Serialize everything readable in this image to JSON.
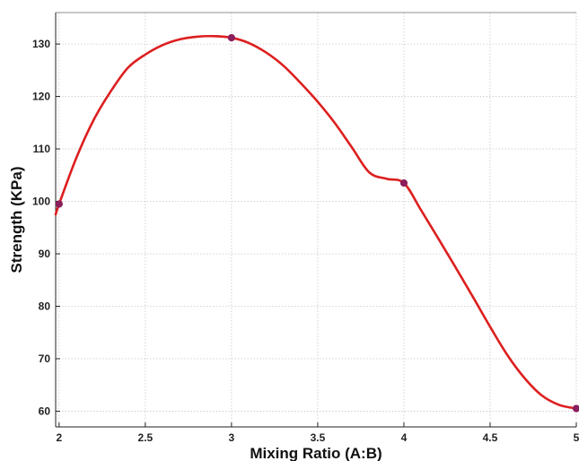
{
  "chart_data": {
    "type": "line",
    "title": "",
    "xlabel": "Mixing Ratio (A:B)",
    "ylabel": "Strength (KPa)",
    "xlim": [
      1.98,
      5.0
    ],
    "ylim": [
      57,
      136
    ],
    "x_ticks": [
      2,
      2.5,
      3,
      3.5,
      4,
      4.5,
      5
    ],
    "x_tick_labels": [
      "2",
      "2.5",
      "3",
      "3.5",
      "4",
      "4.5",
      "5"
    ],
    "y_ticks": [
      60,
      70,
      80,
      90,
      100,
      110,
      120,
      130
    ],
    "y_tick_labels": [
      "60",
      "70",
      "80",
      "90",
      "100",
      "110",
      "120",
      "130"
    ],
    "grid": true,
    "series": [
      {
        "line_color": "#dd1f1f",
        "marker_color": "#8a1f5c",
        "markers": {
          "x": [
            2,
            3,
            4,
            5
          ],
          "y": [
            99.5,
            131.2,
            103.5,
            60.5
          ]
        },
        "curve": {
          "x": [
            1.98,
            2.0,
            2.1,
            2.2,
            2.3,
            2.4,
            2.5,
            2.6,
            2.7,
            2.8,
            2.9,
            3.0,
            3.1,
            3.2,
            3.3,
            3.4,
            3.5,
            3.6,
            3.7,
            3.8,
            3.9,
            4.0,
            4.1,
            4.2,
            4.3,
            4.4,
            4.5,
            4.6,
            4.7,
            4.8,
            4.9,
            5.0
          ],
          "y": [
            97.5,
            99.5,
            108.3,
            115.5,
            121.0,
            125.5,
            128.0,
            129.8,
            130.9,
            131.4,
            131.5,
            131.2,
            130.2,
            128.4,
            125.9,
            122.6,
            119.0,
            114.9,
            110.2,
            105.5,
            104.3,
            103.5,
            98.3,
            92.9,
            87.4,
            81.8,
            76.1,
            70.7,
            66.3,
            63.0,
            61.2,
            60.5
          ]
        }
      }
    ]
  }
}
